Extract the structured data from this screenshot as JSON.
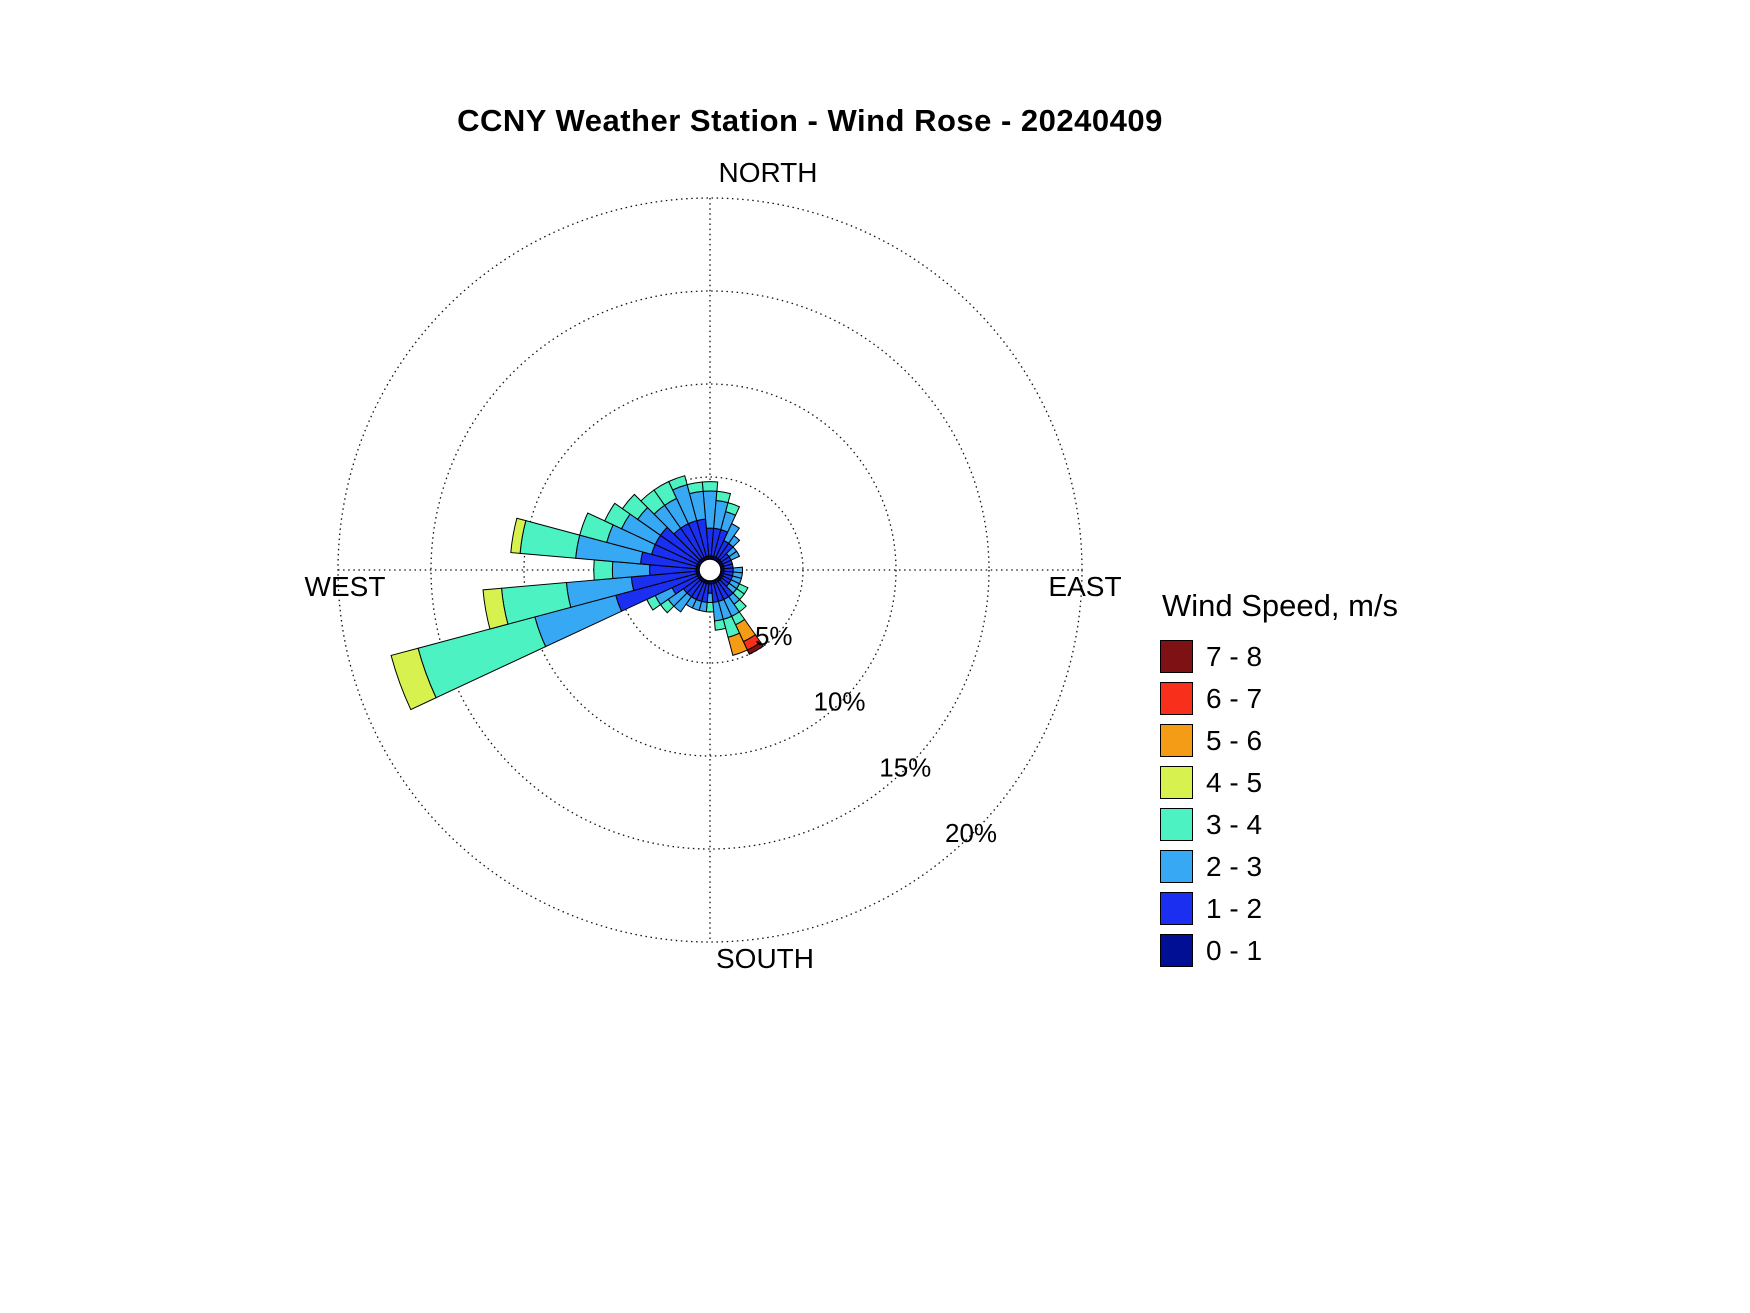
{
  "title": "CCNY Weather Station - Wind Rose - 20240409",
  "legend": {
    "title": "Wind Speed, m/s",
    "entries": [
      {
        "label": "7 - 8",
        "color": "#7D1113"
      },
      {
        "label": "6 - 7",
        "color": "#F8301B"
      },
      {
        "label": "5 - 6",
        "color": "#F59C17"
      },
      {
        "label": "4 - 5",
        "color": "#D7F14E"
      },
      {
        "label": "3 - 4",
        "color": "#4DF2C3"
      },
      {
        "label": "2 - 3",
        "color": "#36A8F4"
      },
      {
        "label": "1 - 2",
        "color": "#1A2FF0"
      },
      {
        "label": "0 - 1",
        "color": "#000F93"
      }
    ]
  },
  "chart_data": {
    "type": "bar",
    "subtype": "wind_rose_polar_stacked",
    "title": "CCNY Weather Station - Wind Rose - 20240409",
    "units": "percent frequency by wind direction, stacked by wind speed bin (m/s)",
    "direction_labels": [
      "NORTH",
      "EAST",
      "SOUTH",
      "WEST"
    ],
    "ring_ticks": [
      "5%",
      "10%",
      "15%",
      "20%"
    ],
    "ring_values": [
      5,
      10,
      15,
      20
    ],
    "rlim": [
      0,
      20
    ],
    "grid": "dotted",
    "legend_position": "right",
    "speed_bins": [
      "0 - 1",
      "1 - 2",
      "2 - 3",
      "3 - 4",
      "4 - 5",
      "5 - 6",
      "6 - 7",
      "7 - 8"
    ],
    "directions_deg": [
      0,
      10,
      20,
      30,
      40,
      50,
      60,
      70,
      80,
      90,
      100,
      110,
      120,
      130,
      140,
      150,
      160,
      170,
      180,
      190,
      200,
      210,
      220,
      230,
      240,
      250,
      260,
      270,
      280,
      290,
      300,
      310,
      320,
      330,
      340,
      350
    ],
    "series": [
      {
        "name": "0 - 1",
        "values": [
          0.75,
          0.75,
          0.75,
          0.75,
          0.75,
          0.75,
          0.75,
          0.75,
          0.75,
          0.75,
          0.75,
          0.75,
          0.75,
          0.75,
          0.75,
          0.75,
          0.75,
          0.75,
          0.75,
          0.75,
          0.75,
          0.75,
          0.75,
          0.75,
          0.75,
          0.75,
          0.75,
          0.75,
          0.75,
          0.75,
          0.75,
          0.75,
          0.75,
          0.75,
          0.75,
          0.75
        ]
      },
      {
        "name": "1 - 2",
        "values": [
          1.5,
          1.5,
          1.5,
          1,
          1,
          0.5,
          0.5,
          0.5,
          0.5,
          0.5,
          0.5,
          0.5,
          0.5,
          0.5,
          1,
          1,
          1,
          1,
          0.5,
          1,
          1,
          1,
          1,
          1,
          1.5,
          4.5,
          3.5,
          2.5,
          3,
          2.5,
          2.5,
          2.5,
          2,
          2,
          2,
          2
        ]
      },
      {
        "name": "2 - 3",
        "values": [
          2,
          1.5,
          1,
          1,
          0.5,
          0.5,
          0.5,
          0,
          0,
          0.5,
          0.5,
          0.5,
          0.5,
          0.5,
          0.5,
          1,
          1,
          1,
          0.5,
          0.5,
          0.5,
          0.5,
          1,
          1,
          1,
          4.5,
          3.5,
          2,
          3.5,
          2.5,
          2,
          1.5,
          1.5,
          1.5,
          2,
          1.5
        ]
      },
      {
        "name": "3 - 4",
        "values": [
          0.5,
          0.5,
          0.5,
          0,
          0,
          0,
          0,
          0,
          0,
          0,
          0,
          0,
          0.5,
          0.5,
          0.5,
          0.5,
          1,
          0.5,
          0.5,
          0,
          0,
          0,
          0,
          0.5,
          0.5,
          6.5,
          3.5,
          1,
          3,
          1.5,
          1,
          1,
          1,
          1,
          0.5,
          0.5
        ]
      },
      {
        "name": "4 - 5",
        "values": [
          0,
          0,
          0,
          0,
          0,
          0,
          0,
          0,
          0,
          0,
          0,
          0,
          0,
          0,
          0,
          0,
          0,
          0,
          0,
          0,
          0,
          0,
          0,
          0,
          0,
          1.5,
          1,
          0,
          0.5,
          0,
          0,
          0,
          0,
          0,
          0,
          0
        ]
      },
      {
        "name": "5 - 6",
        "values": [
          0,
          0,
          0,
          0,
          0,
          0,
          0,
          0,
          0,
          0,
          0,
          0,
          0,
          0,
          0,
          1,
          1,
          0,
          0,
          0,
          0,
          0,
          0,
          0,
          0,
          0,
          0,
          0,
          0,
          0,
          0,
          0,
          0,
          0,
          0,
          0
        ]
      },
      {
        "name": "6 - 7",
        "values": [
          0,
          0,
          0,
          0,
          0,
          0,
          0,
          0,
          0,
          0,
          0,
          0,
          0,
          0,
          0,
          0.5,
          0,
          0,
          0,
          0,
          0,
          0,
          0,
          0,
          0,
          0,
          0,
          0,
          0,
          0,
          0,
          0,
          0,
          0,
          0,
          0
        ]
      },
      {
        "name": "7 - 8",
        "values": [
          0,
          0,
          0,
          0,
          0,
          0,
          0,
          0,
          0,
          0,
          0,
          0,
          0,
          0,
          0,
          0.25,
          0,
          0,
          0,
          0,
          0,
          0,
          0,
          0,
          0,
          0,
          0,
          0,
          0,
          0,
          0,
          0,
          0,
          0,
          0,
          0
        ]
      }
    ]
  }
}
